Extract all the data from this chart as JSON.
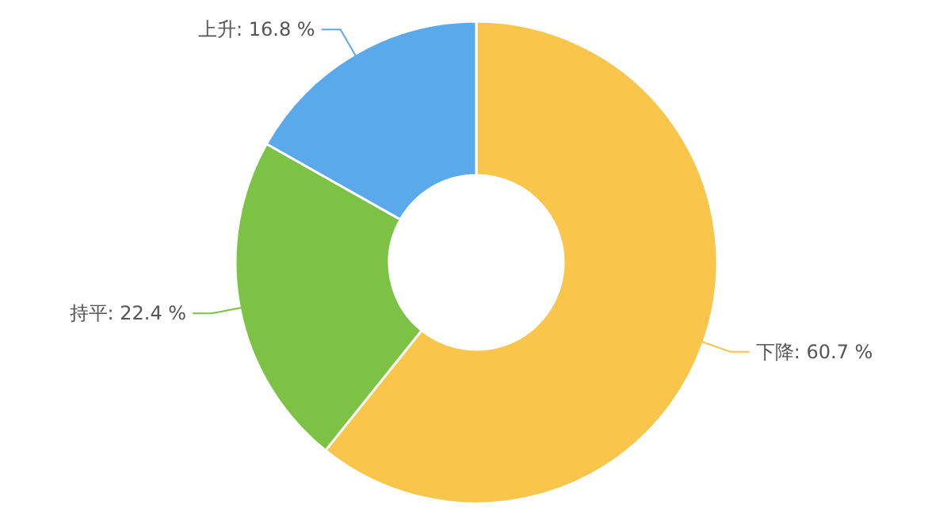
{
  "chart_data": {
    "type": "donut",
    "categories": [
      "下降",
      "持平",
      "上升"
    ],
    "values": [
      60.7,
      22.4,
      16.8
    ],
    "value_labels": [
      "60.7 %",
      "22.4 %",
      "16.8 %"
    ],
    "colors": [
      "#f9c54b",
      "#7cc244",
      "#5aa9ea"
    ]
  }
}
